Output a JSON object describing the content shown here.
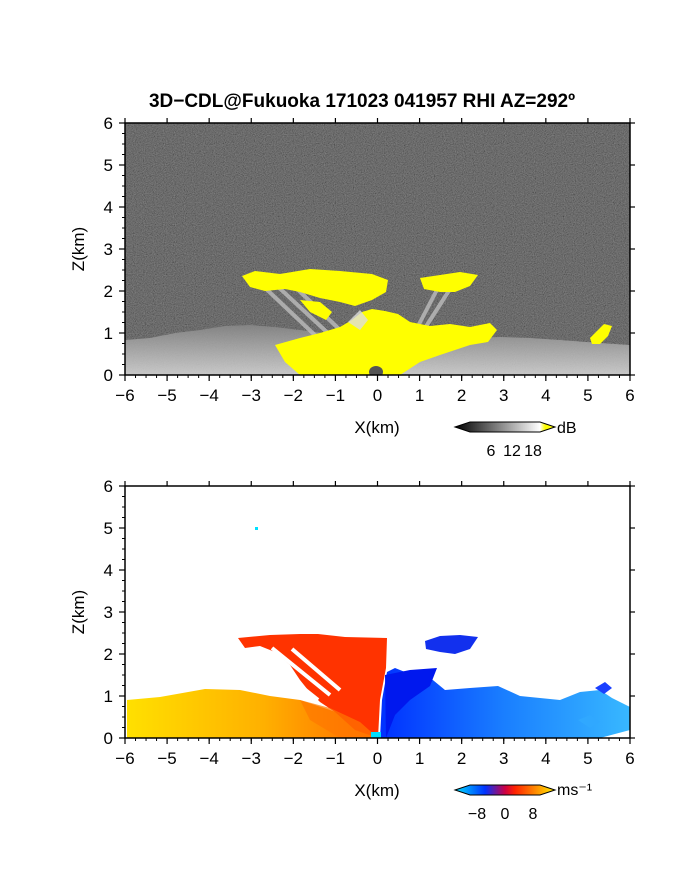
{
  "chart_data": [
    {
      "type": "heatmap",
      "panel": "reflectivity",
      "title": "3D−CDL@Fukuoka 171023 041957 RHI AZ=292º",
      "xlabel": "X(km)",
      "ylabel": "Z(km)",
      "xlim": [
        -6,
        6
      ],
      "ylim": [
        0,
        6
      ],
      "xticks": [
        "−6",
        "−5",
        "−4",
        "−3",
        "−2",
        "−1",
        "0",
        "1",
        "2",
        "3",
        "4",
        "5",
        "6"
      ],
      "yticks": [
        "0",
        "1",
        "2",
        "3",
        "4",
        "5",
        "6"
      ],
      "colorbar": {
        "unit": "dB",
        "ticks": [
          "6",
          "12",
          "18"
        ],
        "tick_values": [
          6,
          12,
          18
        ],
        "range": [
          0,
          20
        ],
        "colormap": [
          "#000000",
          "#ffffff",
          "#ffff00"
        ]
      },
      "background_color": "#2b2b2b",
      "echo_color": "#ffff00",
      "regions": [
        {
          "feature": "strong echo near ground",
          "x": [
            -2.4,
            2.9
          ],
          "z": [
            0,
            1.5
          ]
        },
        {
          "feature": "upper layer left",
          "x": [
            -3.2,
            -0.7
          ],
          "z": [
            1.8,
            2.4
          ]
        },
        {
          "feature": "upper layer right",
          "x": [
            1.1,
            2.3
          ],
          "z": [
            1.8,
            2.4
          ]
        },
        {
          "feature": "boundary layer",
          "x": [
            -6,
            6
          ],
          "z": [
            0,
            0.9
          ]
        },
        {
          "feature": "isolated echo right",
          "x": [
            5.2,
            5.8
          ],
          "z": [
            0.7,
            1.2
          ]
        }
      ]
    },
    {
      "type": "heatmap",
      "panel": "doppler velocity",
      "xlabel": "X(km)",
      "ylabel": "Z(km)",
      "xlim": [
        -6,
        6
      ],
      "ylim": [
        0,
        6
      ],
      "xticks": [
        "−6",
        "−5",
        "−4",
        "−3",
        "−2",
        "−1",
        "0",
        "1",
        "2",
        "3",
        "4",
        "5",
        "6"
      ],
      "yticks": [
        "0",
        "1",
        "2",
        "3",
        "4",
        "5",
        "6"
      ],
      "colorbar": {
        "unit": "ms⁻¹",
        "ticks": [
          "−8",
          "0",
          "8"
        ],
        "tick_values": [
          -8,
          0,
          8
        ],
        "range": [
          -10,
          10
        ],
        "colormap": [
          "#00e0ff",
          "#0033ff",
          "#ff0000",
          "#ff8800",
          "#ffee00"
        ]
      },
      "regions": [
        {
          "feature": "positive velocity layer",
          "x": [
            -6,
            -0.1
          ],
          "z": [
            0,
            1.1
          ],
          "velocity": 6
        },
        {
          "feature": "positive velocity core",
          "x": [
            -1.5,
            0.2
          ],
          "z": [
            0,
            2.4
          ],
          "velocity": 2
        },
        {
          "feature": "positive upper layer",
          "x": [
            -3.3,
            -1.2
          ],
          "z": [
            2.1,
            2.4
          ],
          "velocity": 2
        },
        {
          "feature": "negative velocity layer",
          "x": [
            0.2,
            6
          ],
          "z": [
            0,
            1.2
          ],
          "velocity": -5
        },
        {
          "feature": "negative upper layer",
          "x": [
            1.2,
            2.4
          ],
          "z": [
            2.0,
            2.4
          ],
          "velocity": -2
        },
        {
          "feature": "isolated point",
          "x": [
            -2.9,
            -2.9
          ],
          "z": [
            5.0,
            5.0
          ],
          "velocity": -9
        }
      ]
    }
  ]
}
